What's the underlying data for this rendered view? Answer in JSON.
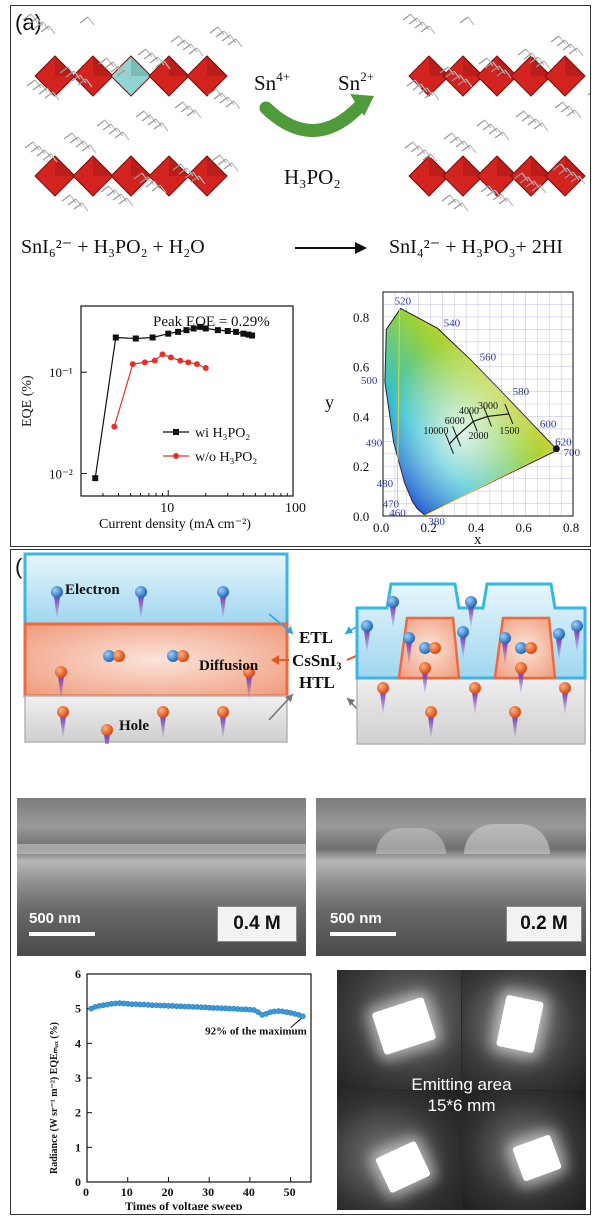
{
  "panel_a": {
    "label": "(a)",
    "ion_from": "Sn",
    "ion_from_charge": "4+",
    "ion_to": "Sn",
    "ion_to_charge": "2+",
    "reagent": "H₃PO₂",
    "reaction_left": "SnI₆²⁻ + H₃PO₂ + H₂O",
    "reaction_right": "SnI₄²⁻ + H₃PO₃+ 2HI"
  },
  "panel_b": {
    "label": "(b)",
    "labels": {
      "electron": "Electron",
      "diffusion": "Diffusion",
      "hole": "Hole",
      "etl": "ETL",
      "cssni3": "CsSnI₃",
      "htl": "HTL"
    },
    "sem": [
      {
        "scale": "500 nm",
        "conc": "0.4 M"
      },
      {
        "scale": "500 nm",
        "conc": "0.2 M"
      }
    ],
    "photo": {
      "line1": "Emitting area",
      "line2": "15*6 mm"
    }
  },
  "colors": {
    "red_octahedra": "#d3231e",
    "arrow_green": "#4f9a3a",
    "etl_blue": "#a9d8f0",
    "perov_salmon": "#f3b39a",
    "htl_gray": "#d4d4d4",
    "electron": "#2b74c7",
    "hole": "#e8531d",
    "stability_blue": "#3a9bd8"
  },
  "chart_data": [
    {
      "type": "line",
      "xlabel": "Current density (mA cm⁻²)",
      "ylabel": "EQE (%)",
      "xscale": "log",
      "yscale": "log",
      "xlim": [
        2,
        100
      ],
      "ylim": [
        0.006,
        0.45
      ],
      "xticks": [
        "10",
        "100"
      ],
      "yticks": [
        "10⁻²",
        "10⁻¹"
      ],
      "annotation": "Peak EQE = 0.29%",
      "legend_position": "bottom-right",
      "series": [
        {
          "name": "wi H₃PO₂",
          "color": "#111111",
          "marker": "square",
          "x": [
            2.6,
            3.8,
            5.5,
            7.5,
            10,
            12,
            14,
            16,
            18,
            20,
            25,
            30,
            35,
            40,
            44,
            47
          ],
          "y": [
            0.009,
            0.22,
            0.215,
            0.22,
            0.24,
            0.25,
            0.26,
            0.27,
            0.28,
            0.27,
            0.26,
            0.255,
            0.25,
            0.24,
            0.235,
            0.23
          ]
        },
        {
          "name": "w/o H₃PO₂",
          "color": "#e8302a",
          "marker": "circle",
          "x": [
            3.7,
            5.2,
            6.5,
            7.8,
            9,
            10.5,
            12.5,
            14.5,
            17,
            20
          ],
          "y": [
            0.029,
            0.12,
            0.125,
            0.13,
            0.15,
            0.14,
            0.13,
            0.125,
            0.12,
            0.11
          ]
        }
      ]
    },
    {
      "type": "scatter",
      "xlabel": "x",
      "ylabel": "y",
      "xlim": [
        0,
        0.8
      ],
      "ylim": [
        0,
        0.9
      ],
      "xticks": [
        "0.0",
        "0.2",
        "0.4",
        "0.6",
        "0.8"
      ],
      "yticks": [
        "0.0",
        "0.2",
        "0.4",
        "0.6",
        "0.8"
      ],
      "grid": true,
      "locus_labels": [
        {
          "text": "380",
          "nm": 380
        },
        {
          "text": "460",
          "nm": 460
        },
        {
          "text": "470",
          "nm": 470
        },
        {
          "text": "480",
          "nm": 480
        },
        {
          "text": "490",
          "nm": 490
        },
        {
          "text": "500",
          "nm": 500
        },
        {
          "text": "520",
          "nm": 520
        },
        {
          "text": "540",
          "nm": 540
        },
        {
          "text": "560",
          "nm": 560
        },
        {
          "text": "580",
          "nm": 580
        },
        {
          "text": "600",
          "nm": 600
        },
        {
          "text": "620",
          "nm": 620
        },
        {
          "text": "700",
          "nm": 700
        }
      ],
      "planckian_labels": [
        "10000",
        "6000",
        "4000",
        "3000",
        "2000",
        "1500"
      ],
      "point": {
        "x": 0.73,
        "y": 0.27
      }
    },
    {
      "type": "scatter",
      "xlabel": "Times of voltage sweep",
      "ylabel": "Radiance (W sr⁻¹ m⁻²) EQEₘₐₓ (%)",
      "xlim": [
        0,
        55
      ],
      "ylim": [
        0,
        6
      ],
      "xticks": [
        "0",
        "10",
        "20",
        "30",
        "40",
        "50"
      ],
      "yticks": [
        "0",
        "1",
        "2",
        "3",
        "4",
        "5",
        "6"
      ],
      "annotation": "92% of the maximum",
      "series": [
        {
          "name": "",
          "color": "#3a9bd8",
          "x": [
            1,
            2,
            3,
            4,
            5,
            6,
            7,
            8,
            9,
            10,
            11,
            12,
            13,
            14,
            15,
            16,
            17,
            18,
            19,
            20,
            21,
            22,
            23,
            24,
            25,
            26,
            27,
            28,
            29,
            30,
            31,
            32,
            33,
            34,
            35,
            36,
            37,
            38,
            39,
            40,
            41,
            42,
            43,
            44,
            45,
            46,
            47,
            48,
            49,
            50,
            51,
            52,
            53
          ],
          "y": [
            5.0,
            5.05,
            5.08,
            5.1,
            5.12,
            5.14,
            5.15,
            5.16,
            5.15,
            5.14,
            5.13,
            5.13,
            5.12,
            5.12,
            5.11,
            5.1,
            5.1,
            5.09,
            5.09,
            5.08,
            5.08,
            5.07,
            5.07,
            5.06,
            5.06,
            5.05,
            5.05,
            5.04,
            5.04,
            5.03,
            5.02,
            5.02,
            5.01,
            5.01,
            5.0,
            5.0,
            4.99,
            4.98,
            4.98,
            4.97,
            4.96,
            4.9,
            4.82,
            4.85,
            4.9,
            4.92,
            4.93,
            4.92,
            4.9,
            4.88,
            4.85,
            4.82,
            4.78
          ]
        }
      ]
    }
  ]
}
